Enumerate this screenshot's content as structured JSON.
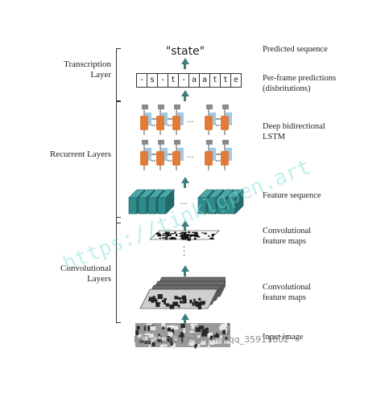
{
  "left_labels": {
    "transcription": "Transcription Layer",
    "recurrent": "Recurrent Layers",
    "convolutional": "Convolutional Layers"
  },
  "right_labels": {
    "predicted_sequence": "Predicted sequence",
    "per_frame": "Per-frame predictions (disbritutions)",
    "deep_lstm": "Deep bidirectional LSTM",
    "feature_sequence": "Feature sequence",
    "conv_maps_1": "Convolutional feature maps",
    "conv_maps_2": "Convolutional feature maps",
    "input_image": "Input image"
  },
  "prediction": {
    "text": "\"state\"",
    "frames": [
      "-",
      "s",
      "-",
      "t",
      "-",
      "a",
      "a",
      "t",
      "t",
      "e"
    ]
  },
  "lstm": {
    "ellipsis": "..."
  },
  "feature_seq": {
    "ellipsis": "..."
  },
  "watermark": {
    "diagonal": "https://tinklgpen.art",
    "footer": "https://blog.csdn.net/qq_35911602"
  },
  "colors": {
    "arrow": "#3e7d7d",
    "lstm_cell": "#e07b39",
    "lstm_input": "#9fc9e6",
    "lstm_top": "#8a8a8a",
    "feature_cube": "#2f8a8a"
  }
}
